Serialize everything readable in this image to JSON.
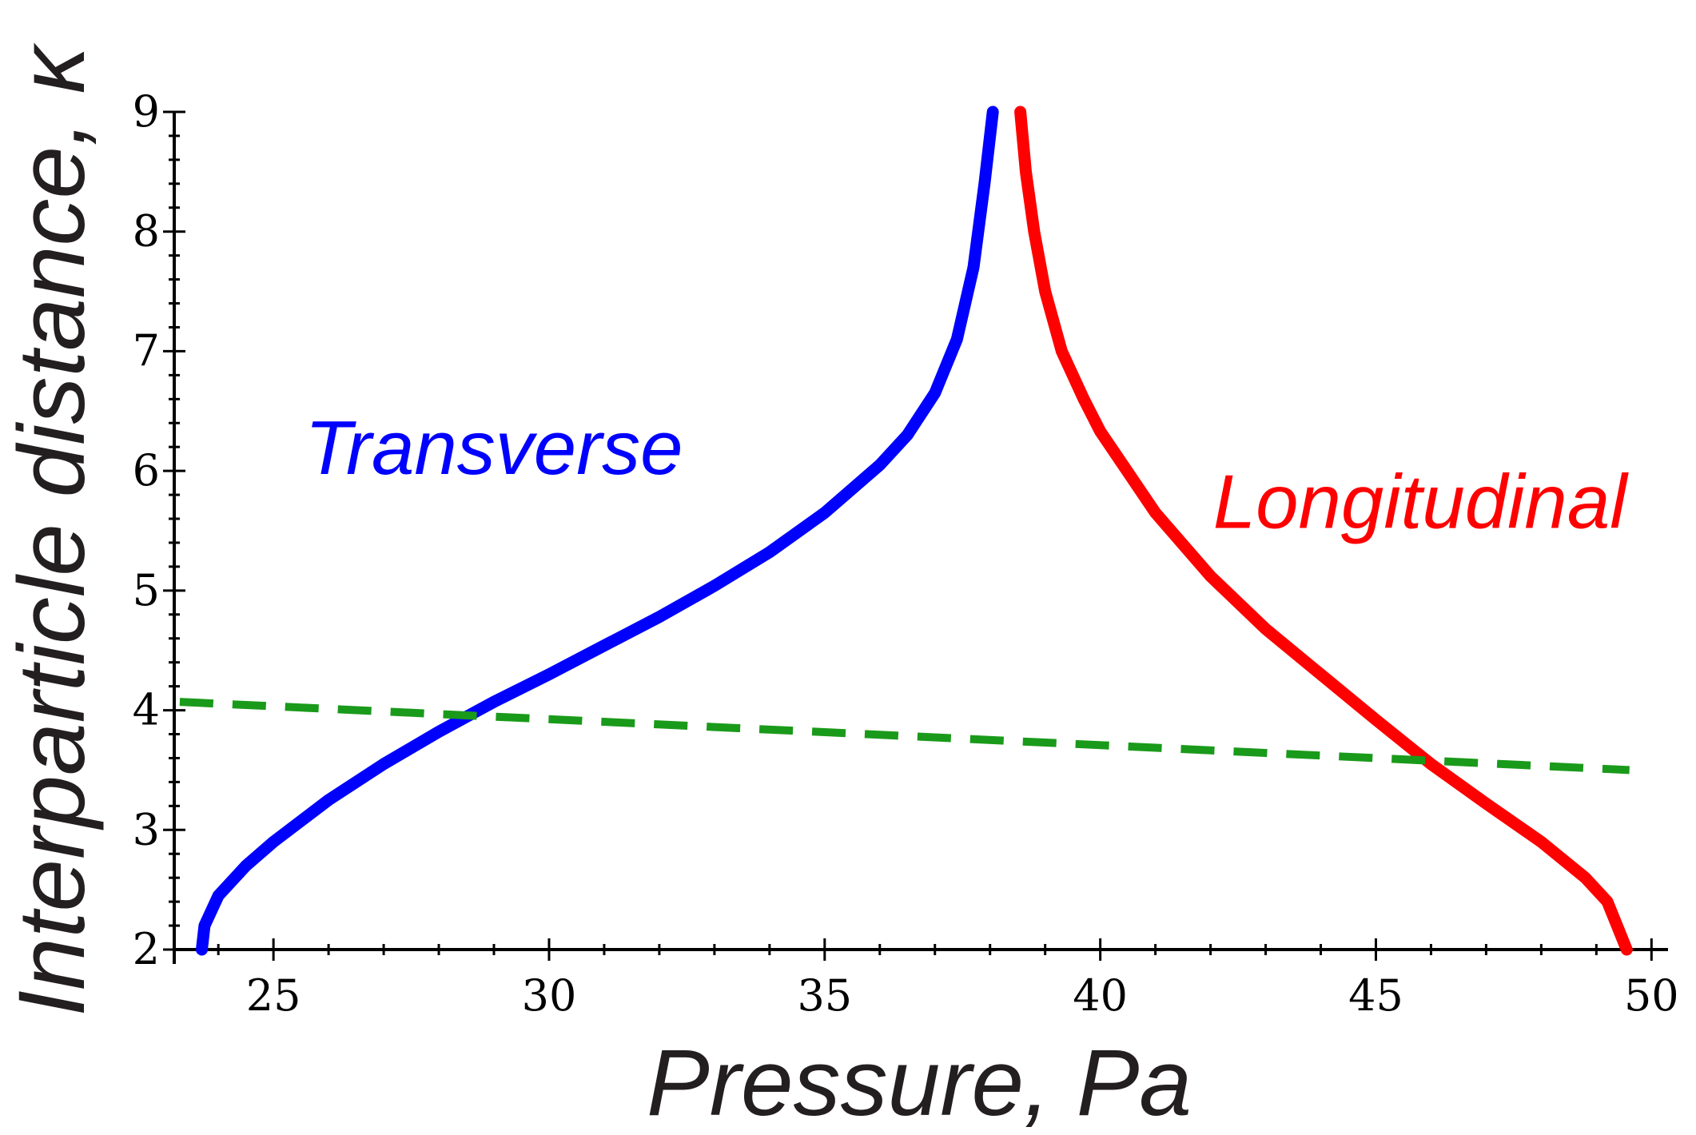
{
  "chart_data": {
    "type": "line",
    "title": "",
    "xlabel": "Pressure, Pa",
    "ylabel": "Interparticle distance, κ",
    "xlim": [
      23.2,
      50.3
    ],
    "ylim": [
      2,
      9
    ],
    "xticks": [
      25,
      30,
      35,
      40,
      45,
      50
    ],
    "yticks": [
      2,
      3,
      4,
      5,
      6,
      7,
      8,
      9
    ],
    "x_minor_step": 1,
    "y_minor_step": 0.2,
    "grid": false,
    "series": [
      {
        "name": "Transverse",
        "color": "#0000ff",
        "style": "solid",
        "label_anchor": {
          "x": 29,
          "y": 6.2
        },
        "points": [
          {
            "x": 23.7,
            "y": 2.0
          },
          {
            "x": 23.75,
            "y": 2.2
          },
          {
            "x": 24.0,
            "y": 2.45
          },
          {
            "x": 24.5,
            "y": 2.7
          },
          {
            "x": 25.0,
            "y": 2.9
          },
          {
            "x": 26.0,
            "y": 3.25
          },
          {
            "x": 27.0,
            "y": 3.55
          },
          {
            "x": 28.0,
            "y": 3.82
          },
          {
            "x": 29.0,
            "y": 4.07
          },
          {
            "x": 30.0,
            "y": 4.3
          },
          {
            "x": 31.0,
            "y": 4.54
          },
          {
            "x": 32.0,
            "y": 4.78
          },
          {
            "x": 33.0,
            "y": 5.04
          },
          {
            "x": 34.0,
            "y": 5.32
          },
          {
            "x": 35.0,
            "y": 5.65
          },
          {
            "x": 36.0,
            "y": 6.05
          },
          {
            "x": 36.5,
            "y": 6.3
          },
          {
            "x": 37.0,
            "y": 6.65
          },
          {
            "x": 37.4,
            "y": 7.1
          },
          {
            "x": 37.7,
            "y": 7.7
          },
          {
            "x": 37.9,
            "y": 8.4
          },
          {
            "x": 38.05,
            "y": 9.0
          }
        ]
      },
      {
        "name": "Longitudinal",
        "color": "#ff0000",
        "style": "solid",
        "label_anchor": {
          "x": 45.8,
          "y": 5.75
        },
        "points": [
          {
            "x": 38.55,
            "y": 9.0
          },
          {
            "x": 38.65,
            "y": 8.5
          },
          {
            "x": 38.8,
            "y": 8.0
          },
          {
            "x": 39.0,
            "y": 7.5
          },
          {
            "x": 39.3,
            "y": 7.0
          },
          {
            "x": 39.7,
            "y": 6.6
          },
          {
            "x": 40.0,
            "y": 6.33
          },
          {
            "x": 41.0,
            "y": 5.65
          },
          {
            "x": 42.0,
            "y": 5.12
          },
          {
            "x": 43.0,
            "y": 4.68
          },
          {
            "x": 44.0,
            "y": 4.3
          },
          {
            "x": 45.0,
            "y": 3.92
          },
          {
            "x": 46.0,
            "y": 3.55
          },
          {
            "x": 47.0,
            "y": 3.22
          },
          {
            "x": 48.0,
            "y": 2.9
          },
          {
            "x": 48.8,
            "y": 2.6
          },
          {
            "x": 49.2,
            "y": 2.4
          },
          {
            "x": 49.55,
            "y": 2.0
          }
        ]
      },
      {
        "name": "",
        "color": "#1a9a1a",
        "style": "dashed",
        "points": [
          {
            "x": 23.3,
            "y": 4.07
          },
          {
            "x": 49.6,
            "y": 3.5
          }
        ]
      }
    ]
  }
}
